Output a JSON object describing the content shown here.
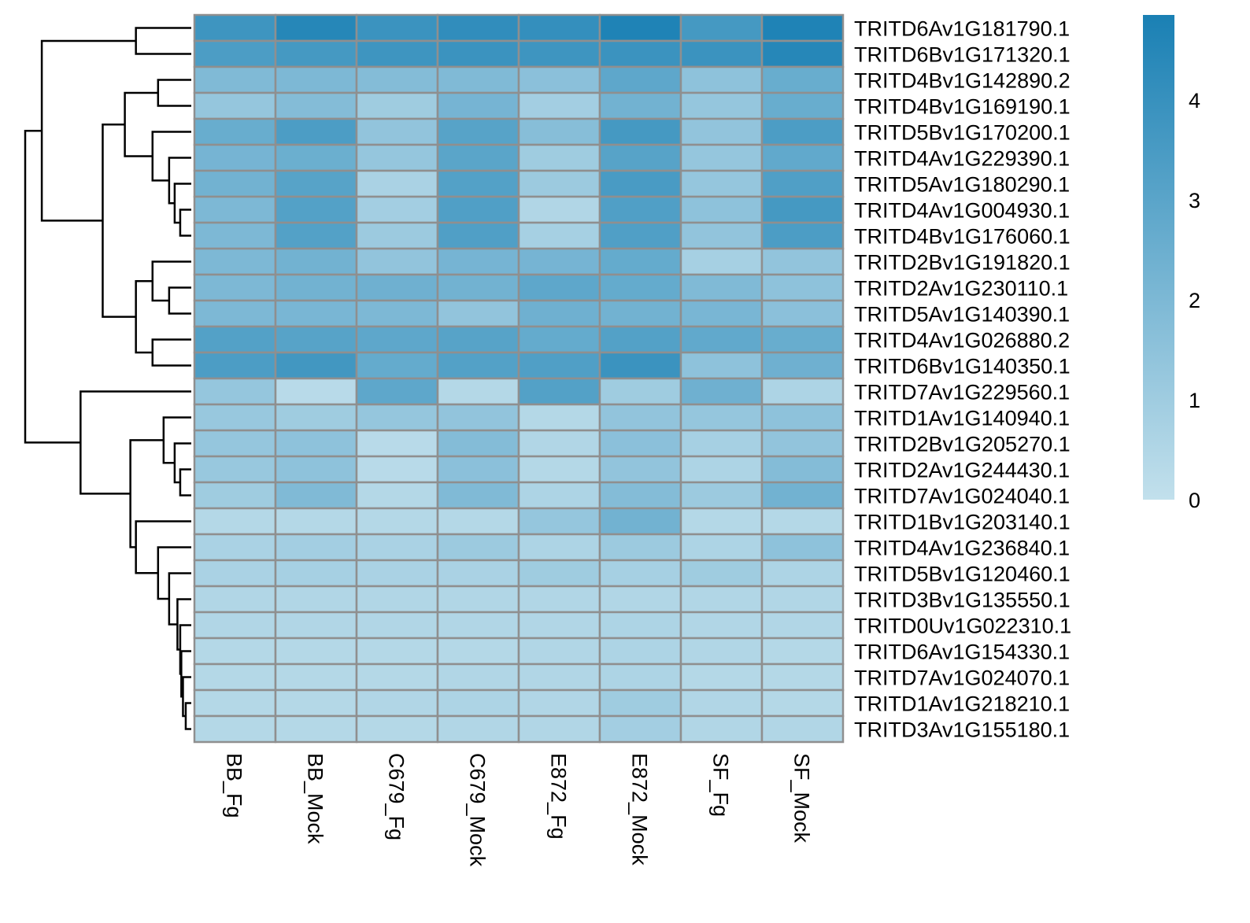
{
  "chart_data": {
    "type": "heatmap",
    "title": "",
    "xlabel": "",
    "ylabel": "",
    "columns": [
      "BB_Fg",
      "BB_Mock",
      "C679_Fg",
      "C679_Mock",
      "E872_Fg",
      "E872_Mock",
      "SF_Fg",
      "SF_Mock"
    ],
    "rows": [
      "TRITD6Av1G181790.1",
      "TRITD6Bv1G171320.1",
      "TRITD4Bv1G142890.2",
      "TRITD4Bv1G169190.1",
      "TRITD5Bv1G170200.1",
      "TRITD4Av1G229390.1",
      "TRITD5Av1G180290.1",
      "TRITD4Av1G004930.1",
      "TRITD4Bv1G176060.1",
      "TRITD2Bv1G191820.1",
      "TRITD2Av1G230110.1",
      "TRITD5Av1G140390.1",
      "TRITD4Av1G026880.2",
      "TRITD6Bv1G140350.1",
      "TRITD7Av1G229560.1",
      "TRITD1Av1G140940.1",
      "TRITD2Bv1G205270.1",
      "TRITD2Av1G244430.1",
      "TRITD7Av1G024040.1",
      "TRITD1Bv1G203140.1",
      "TRITD4Av1G236840.1",
      "TRITD5Bv1G120460.1",
      "TRITD3Bv1G135550.1",
      "TRITD0Uv1G022310.1",
      "TRITD6Av1G154330.1",
      "TRITD7Av1G024070.1",
      "TRITD1Av1G218210.1",
      "TRITD3Av1G155180.1"
    ],
    "values": [
      [
        3.8,
        4.5,
        3.9,
        4.2,
        4.1,
        4.7,
        3.6,
        4.7
      ],
      [
        3.4,
        3.6,
        3.8,
        3.9,
        3.8,
        3.9,
        3.9,
        4.5
      ],
      [
        1.9,
        2.0,
        1.8,
        1.9,
        1.6,
        2.9,
        1.5,
        2.6
      ],
      [
        1.3,
        1.8,
        1.0,
        2.2,
        0.9,
        2.3,
        1.3,
        2.6
      ],
      [
        2.6,
        3.4,
        1.4,
        3.1,
        1.7,
        3.6,
        1.4,
        3.4
      ],
      [
        2.2,
        2.5,
        1.3,
        3.0,
        1.0,
        3.1,
        1.3,
        2.8
      ],
      [
        2.3,
        3.1,
        0.7,
        3.2,
        1.1,
        3.5,
        1.3,
        3.3
      ],
      [
        2.0,
        3.2,
        0.9,
        3.3,
        0.5,
        3.3,
        1.5,
        3.6
      ],
      [
        2.0,
        3.2,
        1.1,
        3.3,
        0.8,
        3.3,
        1.4,
        3.4
      ],
      [
        2.0,
        2.3,
        1.4,
        2.2,
        2.2,
        2.7,
        0.8,
        1.4
      ],
      [
        2.0,
        2.3,
        2.4,
        2.3,
        2.9,
        2.7,
        1.9,
        1.5
      ],
      [
        2.0,
        2.1,
        2.0,
        1.4,
        2.4,
        2.3,
        2.1,
        1.6
      ],
      [
        3.2,
        3.1,
        2.9,
        3.1,
        2.7,
        3.2,
        2.8,
        2.6
      ],
      [
        3.4,
        3.7,
        2.7,
        3.2,
        3.3,
        3.9,
        1.5,
        2.4
      ],
      [
        1.3,
        0.3,
        2.9,
        0.4,
        3.2,
        1.0,
        2.4,
        0.6
      ],
      [
        1.2,
        1.0,
        1.3,
        1.4,
        0.4,
        1.4,
        1.3,
        1.5
      ],
      [
        1.3,
        1.5,
        0.3,
        1.8,
        0.5,
        1.6,
        0.8,
        1.4
      ],
      [
        1.2,
        1.5,
        0.3,
        1.6,
        0.4,
        1.4,
        0.6,
        1.8
      ],
      [
        1.0,
        1.9,
        0.4,
        1.9,
        0.6,
        1.8,
        1.1,
        2.3
      ],
      [
        0.4,
        0.4,
        0.4,
        0.4,
        1.3,
        2.3,
        0.4,
        0.4
      ],
      [
        0.7,
        0.9,
        0.7,
        1.1,
        0.6,
        1.1,
        0.6,
        1.5
      ],
      [
        0.7,
        0.8,
        0.7,
        0.7,
        1.0,
        0.8,
        1.0,
        0.6
      ],
      [
        0.5,
        0.5,
        0.5,
        0.5,
        0.5,
        0.5,
        0.5,
        0.5
      ],
      [
        0.5,
        0.5,
        0.5,
        0.5,
        0.5,
        0.6,
        0.5,
        0.5
      ],
      [
        0.4,
        0.4,
        0.4,
        0.4,
        0.5,
        0.6,
        0.5,
        0.4
      ],
      [
        0.4,
        0.4,
        0.4,
        0.5,
        0.5,
        0.6,
        0.4,
        0.4
      ],
      [
        0.4,
        0.4,
        0.5,
        0.6,
        0.5,
        1.0,
        0.5,
        0.4
      ],
      [
        0.4,
        0.4,
        0.4,
        0.5,
        0.5,
        0.9,
        0.5,
        0.5
      ]
    ],
    "color_scale": {
      "min": 0,
      "max": 4.85,
      "low_color": "#c2e0ec",
      "high_color": "#1a80b4",
      "ticks": [
        0,
        1,
        2,
        3,
        4
      ],
      "legend_position": "right"
    },
    "grid_color": "#8f8f8f",
    "row_dendrogram": {
      "leaf_order": [
        0,
        1,
        2,
        3,
        4,
        5,
        6,
        7,
        8,
        9,
        10,
        11,
        12,
        13,
        14,
        15,
        16,
        17,
        18,
        19,
        20,
        21,
        22,
        23,
        24,
        25,
        26,
        27
      ],
      "merges": [
        [
          0,
          1,
          1.0
        ],
        [
          2,
          3,
          0.6
        ],
        [
          7,
          8,
          0.2
        ],
        [
          6,
          7,
          0.3
        ],
        [
          5,
          6,
          0.4
        ],
        [
          4,
          5,
          0.7
        ],
        [
          2,
          4,
          1.2
        ],
        [
          10,
          11,
          0.4
        ],
        [
          9,
          10,
          0.7
        ],
        [
          12,
          13,
          0.7
        ],
        [
          9,
          12,
          1.0
        ],
        [
          2,
          9,
          1.6
        ],
        [
          0,
          2,
          2.7
        ],
        [
          17,
          18,
          0.2
        ],
        [
          16,
          17,
          0.3
        ],
        [
          15,
          16,
          0.5
        ],
        [
          26,
          27,
          0.1
        ],
        [
          25,
          26,
          0.15
        ],
        [
          24,
          25,
          0.18
        ],
        [
          23,
          24,
          0.2
        ],
        [
          22,
          23,
          0.25
        ],
        [
          21,
          22,
          0.4
        ],
        [
          20,
          21,
          0.6
        ],
        [
          19,
          20,
          1.0
        ],
        [
          15,
          19,
          1.1
        ],
        [
          14,
          15,
          2.0
        ],
        [
          0,
          14,
          3.0
        ]
      ]
    }
  }
}
